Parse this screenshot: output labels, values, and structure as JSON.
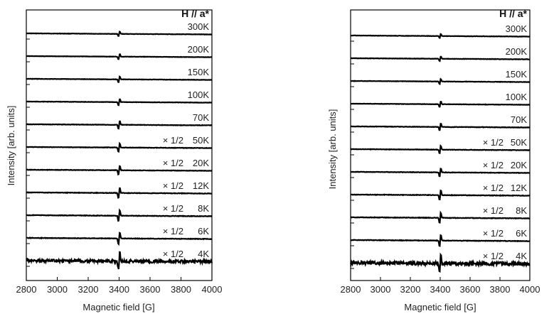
{
  "chart_data": [
    {
      "type": "line",
      "title": "H // a*",
      "xlabel": "Magnetic field [G]",
      "ylabel": "Intensity [arb. units]",
      "xlim": [
        2800,
        4000
      ],
      "xticks": [
        2800,
        3000,
        3200,
        3400,
        3600,
        3800,
        4000
      ],
      "resonance_field": 3400,
      "yticks_shown": false,
      "grid": false,
      "series": [
        {
          "name": "300K",
          "scale_label": "",
          "amplitude": 0.35,
          "noise": 0.04
        },
        {
          "name": "200K",
          "scale_label": "",
          "amplitude": 0.4,
          "noise": 0.04
        },
        {
          "name": "150K",
          "scale_label": "",
          "amplitude": 0.45,
          "noise": 0.04
        },
        {
          "name": "100K",
          "scale_label": "",
          "amplitude": 0.5,
          "noise": 0.04
        },
        {
          "name": "70K",
          "scale_label": "",
          "amplitude": 0.6,
          "noise": 0.05
        },
        {
          "name": "50K",
          "scale_label": "× 1/2",
          "amplitude": 0.65,
          "noise": 0.05
        },
        {
          "name": "20K",
          "scale_label": "× 1/2",
          "amplitude": 0.7,
          "noise": 0.05
        },
        {
          "name": "12K",
          "scale_label": "× 1/2",
          "amplitude": 0.8,
          "noise": 0.06
        },
        {
          "name": "8K",
          "scale_label": "× 1/2",
          "amplitude": 0.85,
          "noise": 0.06
        },
        {
          "name": "6K",
          "scale_label": "× 1/2",
          "amplitude": 0.95,
          "noise": 0.06
        },
        {
          "name": "4K",
          "scale_label": "× 1/2",
          "amplitude": 1.4,
          "noise": 0.35
        }
      ]
    },
    {
      "type": "line",
      "title": "H // a*",
      "xlabel": "Magnetic field [G]",
      "ylabel": "Intensity [arb. units]",
      "xlim": [
        2800,
        4000
      ],
      "xticks": [
        2800,
        3000,
        3200,
        3400,
        3600,
        3800,
        4000
      ],
      "resonance_field": 3400,
      "yticks_shown": false,
      "grid": false,
      "series": [
        {
          "name": "300K",
          "scale_label": "",
          "amplitude": 0.3,
          "noise": 0.04
        },
        {
          "name": "200K",
          "scale_label": "",
          "amplitude": 0.35,
          "noise": 0.04
        },
        {
          "name": "150K",
          "scale_label": "",
          "amplitude": 0.4,
          "noise": 0.04
        },
        {
          "name": "100K",
          "scale_label": "",
          "amplitude": 0.45,
          "noise": 0.04
        },
        {
          "name": "70K",
          "scale_label": "",
          "amplitude": 0.55,
          "noise": 0.05
        },
        {
          "name": "50K",
          "scale_label": "× 1/2",
          "amplitude": 0.6,
          "noise": 0.05
        },
        {
          "name": "20K",
          "scale_label": "× 1/2",
          "amplitude": 0.65,
          "noise": 0.05
        },
        {
          "name": "12K",
          "scale_label": "× 1/2",
          "amplitude": 0.75,
          "noise": 0.06
        },
        {
          "name": "8K",
          "scale_label": "× 1/2",
          "amplitude": 0.8,
          "noise": 0.06
        },
        {
          "name": "6K",
          "scale_label": "× 1/2",
          "amplitude": 0.9,
          "noise": 0.06
        },
        {
          "name": "4K",
          "scale_label": "× 1/2",
          "amplitude": 1.3,
          "noise": 0.4
        }
      ]
    }
  ]
}
